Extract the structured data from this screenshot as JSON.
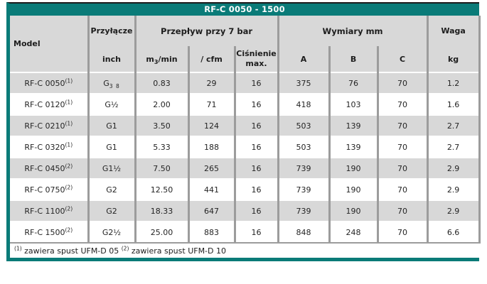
{
  "title": "RF-C 0050 - 1500",
  "header": {
    "model": "Model",
    "connection": "Przyłącze",
    "connection_unit": "inch",
    "flow_group": "Przepływ przy 7 bar",
    "flow_unit_prefix": "m",
    "flow_unit_sub": "3",
    "flow_unit_suffix": "/min",
    "flow_cfm": "/ cfm",
    "pressure_line1": "Ciśnienie",
    "pressure_line2": "max.",
    "dims_group": "Wymiary mm",
    "dim_a": "A",
    "dim_b": "B",
    "dim_c": "C",
    "weight": "Waga",
    "weight_unit": "kg"
  },
  "chart_data": {
    "type": "table",
    "title": "RF-C 0050 - 1500",
    "columns": [
      "Model",
      "Przyłącze inch",
      "m3/min",
      "/ cfm",
      "Ciśnienie max.",
      "A",
      "B",
      "C",
      "kg"
    ],
    "rows": [
      {
        "model": "RF-C 0050",
        "note": "(1)",
        "conn": "G",
        "conn_sub": "3 8",
        "m3min": "0.83",
        "cfm": "29",
        "pressure_max": "16",
        "dim_a": "375",
        "dim_b": "76",
        "dim_c": "70",
        "weight_kg": "1.2"
      },
      {
        "model": "RF-C 0120",
        "note": "(1)",
        "conn": "G½",
        "conn_sub": "",
        "m3min": "2.00",
        "cfm": "71",
        "pressure_max": "16",
        "dim_a": "418",
        "dim_b": "103",
        "dim_c": "70",
        "weight_kg": "1.6"
      },
      {
        "model": "RF-C 0210",
        "note": "(1)",
        "conn": "G1",
        "conn_sub": "",
        "m3min": "3.50",
        "cfm": "124",
        "pressure_max": "16",
        "dim_a": "503",
        "dim_b": "139",
        "dim_c": "70",
        "weight_kg": "2.7"
      },
      {
        "model": "RF-C 0320",
        "note": "(1)",
        "conn": "G1",
        "conn_sub": "",
        "m3min": "5.33",
        "cfm": "188",
        "pressure_max": "16",
        "dim_a": "503",
        "dim_b": "139",
        "dim_c": "70",
        "weight_kg": "2.7"
      },
      {
        "model": "RF-C 0450",
        "note": "(2)",
        "conn": "G1½",
        "conn_sub": "",
        "m3min": "7.50",
        "cfm": "265",
        "pressure_max": "16",
        "dim_a": "739",
        "dim_b": "190",
        "dim_c": "70",
        "weight_kg": "2.9"
      },
      {
        "model": "RF-C 0750",
        "note": "(2)",
        "conn": "G2",
        "conn_sub": "",
        "m3min": "12.50",
        "cfm": "441",
        "pressure_max": "16",
        "dim_a": "739",
        "dim_b": "190",
        "dim_c": "70",
        "weight_kg": "2.9"
      },
      {
        "model": "RF-C 1100",
        "note": "(2)",
        "conn": "G2",
        "conn_sub": "",
        "m3min": "18.33",
        "cfm": "647",
        "pressure_max": "16",
        "dim_a": "739",
        "dim_b": "190",
        "dim_c": "70",
        "weight_kg": "2.9"
      },
      {
        "model": "RF-C 1500",
        "note": "(2)",
        "conn": "G2½",
        "conn_sub": "",
        "m3min": "25.00",
        "cfm": "883",
        "pressure_max": "16",
        "dim_a": "848",
        "dim_b": "248",
        "dim_c": "70",
        "weight_kg": "6.6"
      }
    ]
  },
  "footnote": {
    "marker1": "(1)",
    "text1": " zawiera spust UFM-D 05 ",
    "marker2": "(2)",
    "text2": " zawiera spust UFM-D 10"
  },
  "colors": {
    "accent_teal": "#0a7b78",
    "row_gray": "#d8d8d8",
    "grid_gray": "#9c9c9c",
    "text": "#222222"
  }
}
